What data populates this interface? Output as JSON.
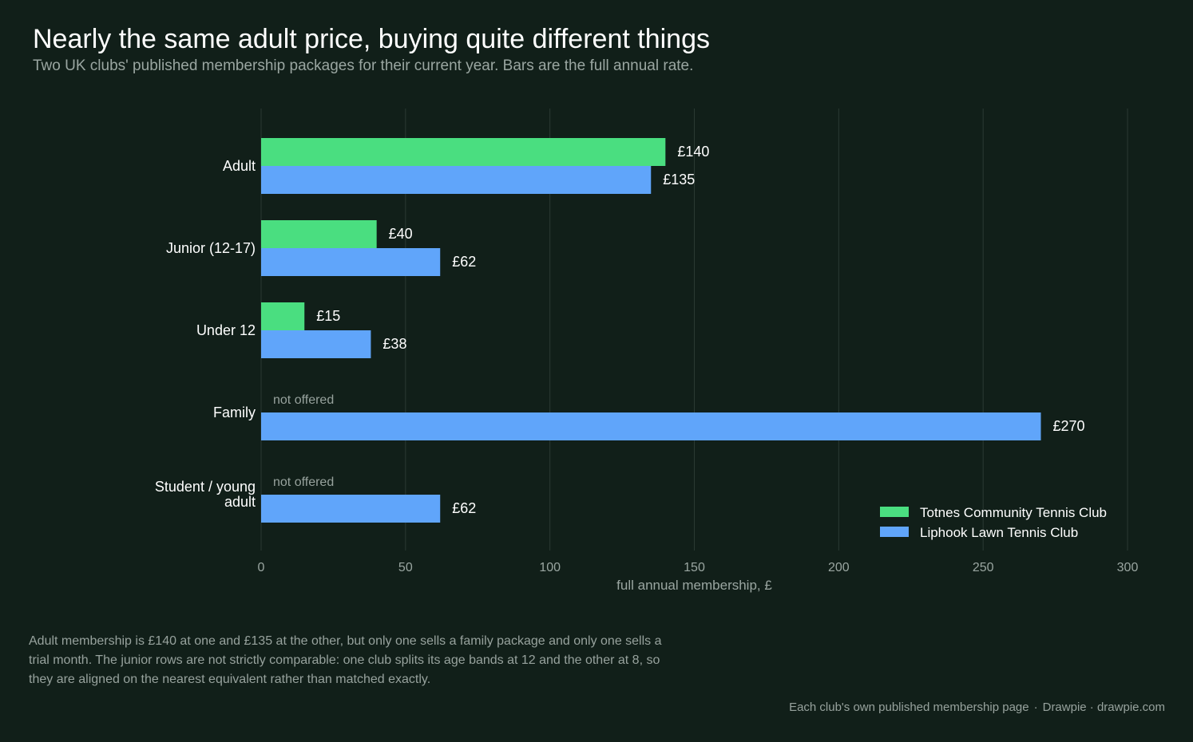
{
  "title": "Nearly the same adult price, buying quite different things",
  "subtitle": "Two UK clubs' published membership packages for their current year. Bars are the full annual rate.",
  "note": "Adult membership is £140 at one and £135 at the other, but only one sells a family package and only one sells a trial month. The junior rows are not strictly comparable: one club splits its age bands at 12 and the other at 8, so they are aligned on the nearest equivalent rather than matched exactly.",
  "source": {
    "text": "Each club's own published membership page",
    "separator": "·",
    "credit": "Drawpie · drawpie.com"
  },
  "colors": {
    "background": "#111f19",
    "totnes": "#4ade80",
    "liphook": "#60a5fa",
    "grid": "#2a3a33",
    "muted_text": "#97a29d"
  },
  "chart_data": {
    "type": "bar",
    "orientation": "horizontal",
    "categories": [
      "Adult",
      "Junior (12-17)",
      "Under 12",
      "Family",
      "Student / young adult"
    ],
    "series": [
      {
        "name": "Totnes Community Tennis Club",
        "color": "#4ade80",
        "values": [
          140,
          40,
          15,
          null,
          null
        ]
      },
      {
        "name": "Liphook Lawn Tennis Club",
        "color": "#60a5fa",
        "values": [
          135,
          62,
          38,
          270,
          62
        ]
      }
    ],
    "value_prefix": "£",
    "missing_label": "not offered",
    "xlabel": "full annual membership, £",
    "xlim": [
      0,
      300
    ],
    "xticks": [
      0,
      50,
      100,
      150,
      200,
      250,
      300
    ],
    "grid": "vertical",
    "legend_position": "bottom-right"
  }
}
